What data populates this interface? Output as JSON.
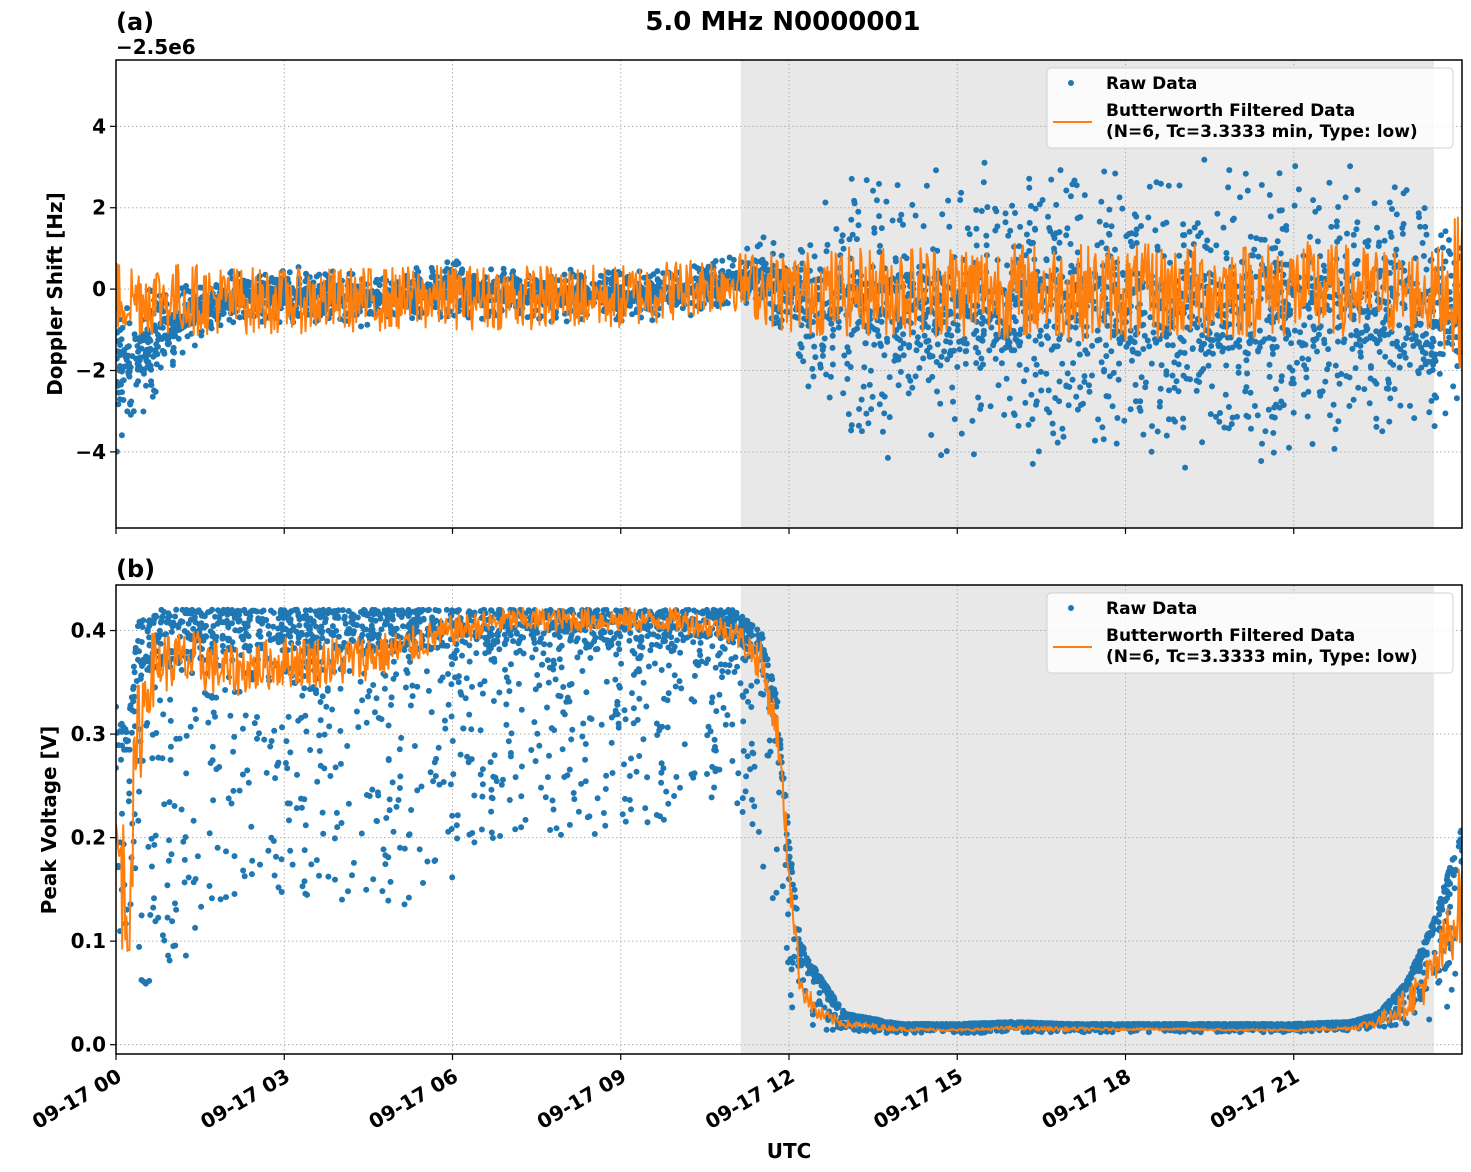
{
  "title": "5.0 MHz N0000001",
  "chart_data": [
    {
      "panel": "(a)",
      "type": "scatter",
      "title": "",
      "xlabel": "",
      "ylabel": "Doppler Shift [Hz]",
      "y_offset_label": "−2.5e6",
      "xlim": [
        0,
        24
      ],
      "ylim": [
        -5.87,
        5.63
      ],
      "yticks": [
        4,
        2,
        0,
        -2,
        -4
      ],
      "ytick_labels": [
        "4",
        "2",
        "0",
        "−2",
        "−4"
      ],
      "grid": true,
      "shaded_region_hours": [
        11.14,
        23.5
      ],
      "legend": {
        "position": "upper right",
        "entries": [
          "Raw Data",
          "Butterworth Filtered Data\n(N=6, Tc=3.3333 min, Type: low)"
        ]
      },
      "series": [
        {
          "name": "Raw Data",
          "style": "scatter",
          "color": "#1f77b4",
          "envelope_hours": [
            0,
            0.5,
            1,
            2,
            3,
            4,
            5,
            6,
            7,
            8,
            9,
            10,
            11,
            11.5,
            12,
            12.5,
            13,
            14,
            15,
            16,
            17,
            18,
            19,
            20,
            21,
            22,
            23,
            23.5,
            24
          ],
          "envelope_upper": [
            0.5,
            0.4,
            0.3,
            0.5,
            0.6,
            0.5,
            0.5,
            0.8,
            0.5,
            0.6,
            0.6,
            0.6,
            0.9,
            1.3,
            1.5,
            2.3,
            3.0,
            3.2,
            3.3,
            3.4,
            3.2,
            3.5,
            3.4,
            3.3,
            3.5,
            3.3,
            3.0,
            2.6,
            1.5
          ],
          "envelope_lower": [
            -4.2,
            -3.4,
            -2.1,
            -0.9,
            -0.9,
            -1.0,
            -0.9,
            -0.8,
            -0.8,
            -0.9,
            -0.9,
            -0.8,
            -0.5,
            -0.7,
            -1.5,
            -3.0,
            -4.0,
            -4.3,
            -4.5,
            -4.5,
            -4.3,
            -4.6,
            -4.7,
            -4.5,
            -4.4,
            -4.2,
            -4.0,
            -4.8,
            -2.5
          ]
        },
        {
          "name": "Butterworth Filtered Data (N=6, Tc=3.3333 min, Type: low)",
          "style": "line",
          "color": "#ff7f0e",
          "amplitude_hours": [
            0,
            3,
            6,
            9,
            11,
            12,
            15,
            18,
            21,
            23.5,
            24
          ],
          "amplitude": [
            1.2,
            1.0,
            1.0,
            1.0,
            0.9,
            1.3,
            1.5,
            1.5,
            1.5,
            1.3,
            2.5
          ],
          "center": [
            -0.2,
            -0.3,
            -0.2,
            -0.2,
            0.2,
            -0.1,
            0.0,
            -0.1,
            0.0,
            -0.1,
            0.0
          ]
        }
      ]
    },
    {
      "panel": "(b)",
      "type": "scatter",
      "title": "",
      "xlabel": "UTC",
      "ylabel": "Peak Voltage [V]",
      "xlim": [
        0,
        24
      ],
      "ylim": [
        -0.009,
        0.444
      ],
      "yticks": [
        0.4,
        0.3,
        0.2,
        0.1,
        0.0
      ],
      "ytick_labels": [
        "0.4",
        "0.3",
        "0.2",
        "0.1",
        "0.0"
      ],
      "grid": true,
      "shaded_region_hours": [
        11.14,
        23.5
      ],
      "legend": {
        "position": "upper right",
        "entries": [
          "Raw Data",
          "Butterworth Filtered Data\n(N=6, Tc=3.3333 min, Type: low)"
        ]
      },
      "series": [
        {
          "name": "Raw Data",
          "style": "scatter",
          "color": "#1f77b4",
          "envelope_hours": [
            0,
            0.2,
            0.4,
            0.6,
            0.8,
            1.0,
            1.5,
            2,
            3,
            4,
            5,
            6,
            7,
            8,
            9,
            10,
            11,
            11.5,
            11.8,
            12.0,
            12.2,
            12.5,
            13,
            14,
            15,
            16,
            17,
            18,
            19,
            20,
            21,
            22,
            22.5,
            23,
            23.5,
            24
          ],
          "envelope_upper": [
            0.33,
            0.3,
            0.41,
            0.41,
            0.42,
            0.42,
            0.42,
            0.42,
            0.42,
            0.42,
            0.42,
            0.42,
            0.42,
            0.42,
            0.42,
            0.42,
            0.42,
            0.4,
            0.33,
            0.2,
            0.1,
            0.07,
            0.03,
            0.02,
            0.02,
            0.022,
            0.02,
            0.02,
            0.02,
            0.02,
            0.02,
            0.022,
            0.03,
            0.06,
            0.12,
            0.21
          ],
          "envelope_lower": [
            0.03,
            0.04,
            0.05,
            0.06,
            0.08,
            0.07,
            0.1,
            0.14,
            0.14,
            0.14,
            0.13,
            0.16,
            0.2,
            0.19,
            0.2,
            0.22,
            0.24,
            0.18,
            0.12,
            0.04,
            0.015,
            0.012,
            0.012,
            0.011,
            0.011,
            0.012,
            0.012,
            0.012,
            0.012,
            0.012,
            0.012,
            0.013,
            0.015,
            0.02,
            0.025,
            0.04
          ]
        },
        {
          "name": "Butterworth Filtered Data (N=6, Tc=3.3333 min, Type: low)",
          "style": "line",
          "color": "#ff7f0e",
          "x_hours": [
            0,
            0.2,
            0.4,
            0.6,
            0.8,
            1.0,
            1.5,
            2,
            3,
            4,
            5,
            6,
            7,
            8,
            9,
            10,
            11,
            11.5,
            11.8,
            12.0,
            12.2,
            12.5,
            13,
            14,
            15,
            16,
            17,
            18,
            19,
            20,
            21,
            22,
            22.5,
            23,
            23.5,
            24
          ],
          "values": [
            0.2,
            0.13,
            0.3,
            0.36,
            0.37,
            0.37,
            0.37,
            0.36,
            0.37,
            0.37,
            0.38,
            0.4,
            0.41,
            0.41,
            0.41,
            0.41,
            0.4,
            0.37,
            0.3,
            0.17,
            0.06,
            0.03,
            0.02,
            0.015,
            0.014,
            0.016,
            0.015,
            0.015,
            0.015,
            0.014,
            0.014,
            0.016,
            0.022,
            0.04,
            0.07,
            0.14
          ],
          "noise": [
            0.06,
            0.08,
            0.06,
            0.04,
            0.03,
            0.03,
            0.03,
            0.025,
            0.025,
            0.025,
            0.02,
            0.015,
            0.012,
            0.012,
            0.012,
            0.012,
            0.012,
            0.02,
            0.02,
            0.02,
            0.015,
            0.008,
            0.004,
            0.002,
            0.001,
            0.002,
            0.002,
            0.001,
            0.001,
            0.001,
            0.001,
            0.002,
            0.006,
            0.015,
            0.025,
            0.04
          ]
        }
      ]
    }
  ],
  "x_axis": {
    "label": "UTC",
    "tick_hours": [
      0,
      3,
      6,
      9,
      12,
      15,
      18,
      21
    ],
    "tick_labels": [
      "09-17 00",
      "09-17 03",
      "09-17 06",
      "09-17 09",
      "09-17 12",
      "09-17 15",
      "09-17 18",
      "09-17 21"
    ]
  },
  "legend": {
    "raw_label": "Raw Data",
    "filtered_label_line1": "Butterworth Filtered Data",
    "filtered_label_line2": "(N=6, Tc=3.3333 min, Type: low)"
  },
  "colors": {
    "raw": "#1f77b4",
    "filtered": "#ff7f0e",
    "shade": "#e8e8e8",
    "grid": "#b0b0b0"
  }
}
